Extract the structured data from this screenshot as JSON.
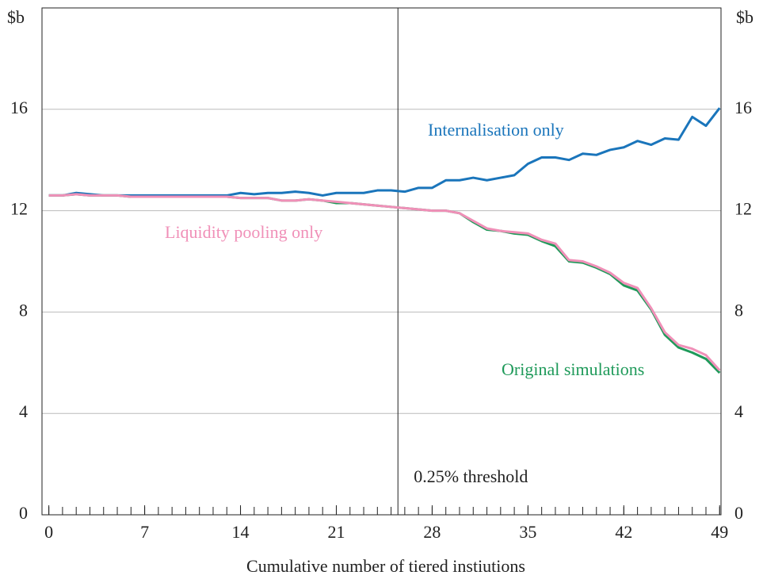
{
  "chart_data": {
    "type": "line",
    "xlabel": "Cumulative number of tiered instiutions",
    "ylabel": "$b",
    "y2label": "$b",
    "x": [
      0,
      1,
      2,
      3,
      4,
      5,
      6,
      7,
      8,
      9,
      10,
      11,
      12,
      13,
      14,
      15,
      16,
      17,
      18,
      19,
      20,
      21,
      22,
      23,
      24,
      25,
      26,
      27,
      28,
      29,
      30,
      31,
      32,
      33,
      34,
      35,
      36,
      37,
      38,
      39,
      40,
      41,
      42,
      43,
      44,
      45,
      46,
      47,
      48,
      49
    ],
    "series": [
      {
        "name": "Internalisation only",
        "color": "#1a75bb",
        "values": [
          12.6,
          12.6,
          12.7,
          12.65,
          12.6,
          12.6,
          12.6,
          12.6,
          12.6,
          12.6,
          12.6,
          12.6,
          12.6,
          12.6,
          12.7,
          12.65,
          12.7,
          12.7,
          12.75,
          12.7,
          12.6,
          12.7,
          12.7,
          12.7,
          12.8,
          12.8,
          12.75,
          12.9,
          12.9,
          13.2,
          13.2,
          13.3,
          13.2,
          13.3,
          13.4,
          13.85,
          14.1,
          14.1,
          14.0,
          14.25,
          14.2,
          14.4,
          14.5,
          14.75,
          14.6,
          14.85,
          14.8,
          15.7,
          15.35,
          16.05
        ]
      },
      {
        "name": "Original simulations",
        "color": "#1f9a5a",
        "values": [
          12.6,
          12.6,
          12.65,
          12.6,
          12.6,
          12.6,
          12.55,
          12.55,
          12.55,
          12.55,
          12.55,
          12.55,
          12.55,
          12.55,
          12.5,
          12.5,
          12.5,
          12.4,
          12.4,
          12.45,
          12.4,
          12.3,
          12.3,
          12.25,
          12.2,
          12.15,
          12.1,
          12.05,
          12.0,
          12.0,
          11.9,
          11.55,
          11.25,
          11.2,
          11.1,
          11.05,
          10.8,
          10.6,
          10.0,
          9.95,
          9.75,
          9.5,
          9.05,
          8.85,
          8.1,
          7.1,
          6.6,
          6.4,
          6.15,
          5.6
        ]
      },
      {
        "name": "Liquidity pooling only",
        "color": "#f090b8",
        "values": [
          12.6,
          12.6,
          12.65,
          12.6,
          12.6,
          12.6,
          12.55,
          12.55,
          12.55,
          12.55,
          12.55,
          12.55,
          12.55,
          12.55,
          12.5,
          12.5,
          12.5,
          12.4,
          12.4,
          12.45,
          12.4,
          12.35,
          12.3,
          12.25,
          12.2,
          12.15,
          12.1,
          12.05,
          12.0,
          12.0,
          11.9,
          11.6,
          11.3,
          11.2,
          11.15,
          11.1,
          10.85,
          10.7,
          10.05,
          10.0,
          9.8,
          9.55,
          9.15,
          8.95,
          8.15,
          7.2,
          6.7,
          6.55,
          6.3,
          5.7
        ]
      }
    ],
    "threshold": {
      "x": 25.5,
      "label": "0.25% threshold"
    },
    "xlim": [
      -0.5,
      49.1
    ],
    "xticks": [
      0,
      7,
      14,
      21,
      28,
      35,
      42,
      49
    ],
    "ylim": [
      0,
      20
    ],
    "yticks": [
      0,
      4,
      8,
      12,
      16
    ],
    "y2lim": [
      0,
      20
    ],
    "y2ticks": [
      0,
      4,
      8,
      12,
      16
    ],
    "grid": true
  }
}
